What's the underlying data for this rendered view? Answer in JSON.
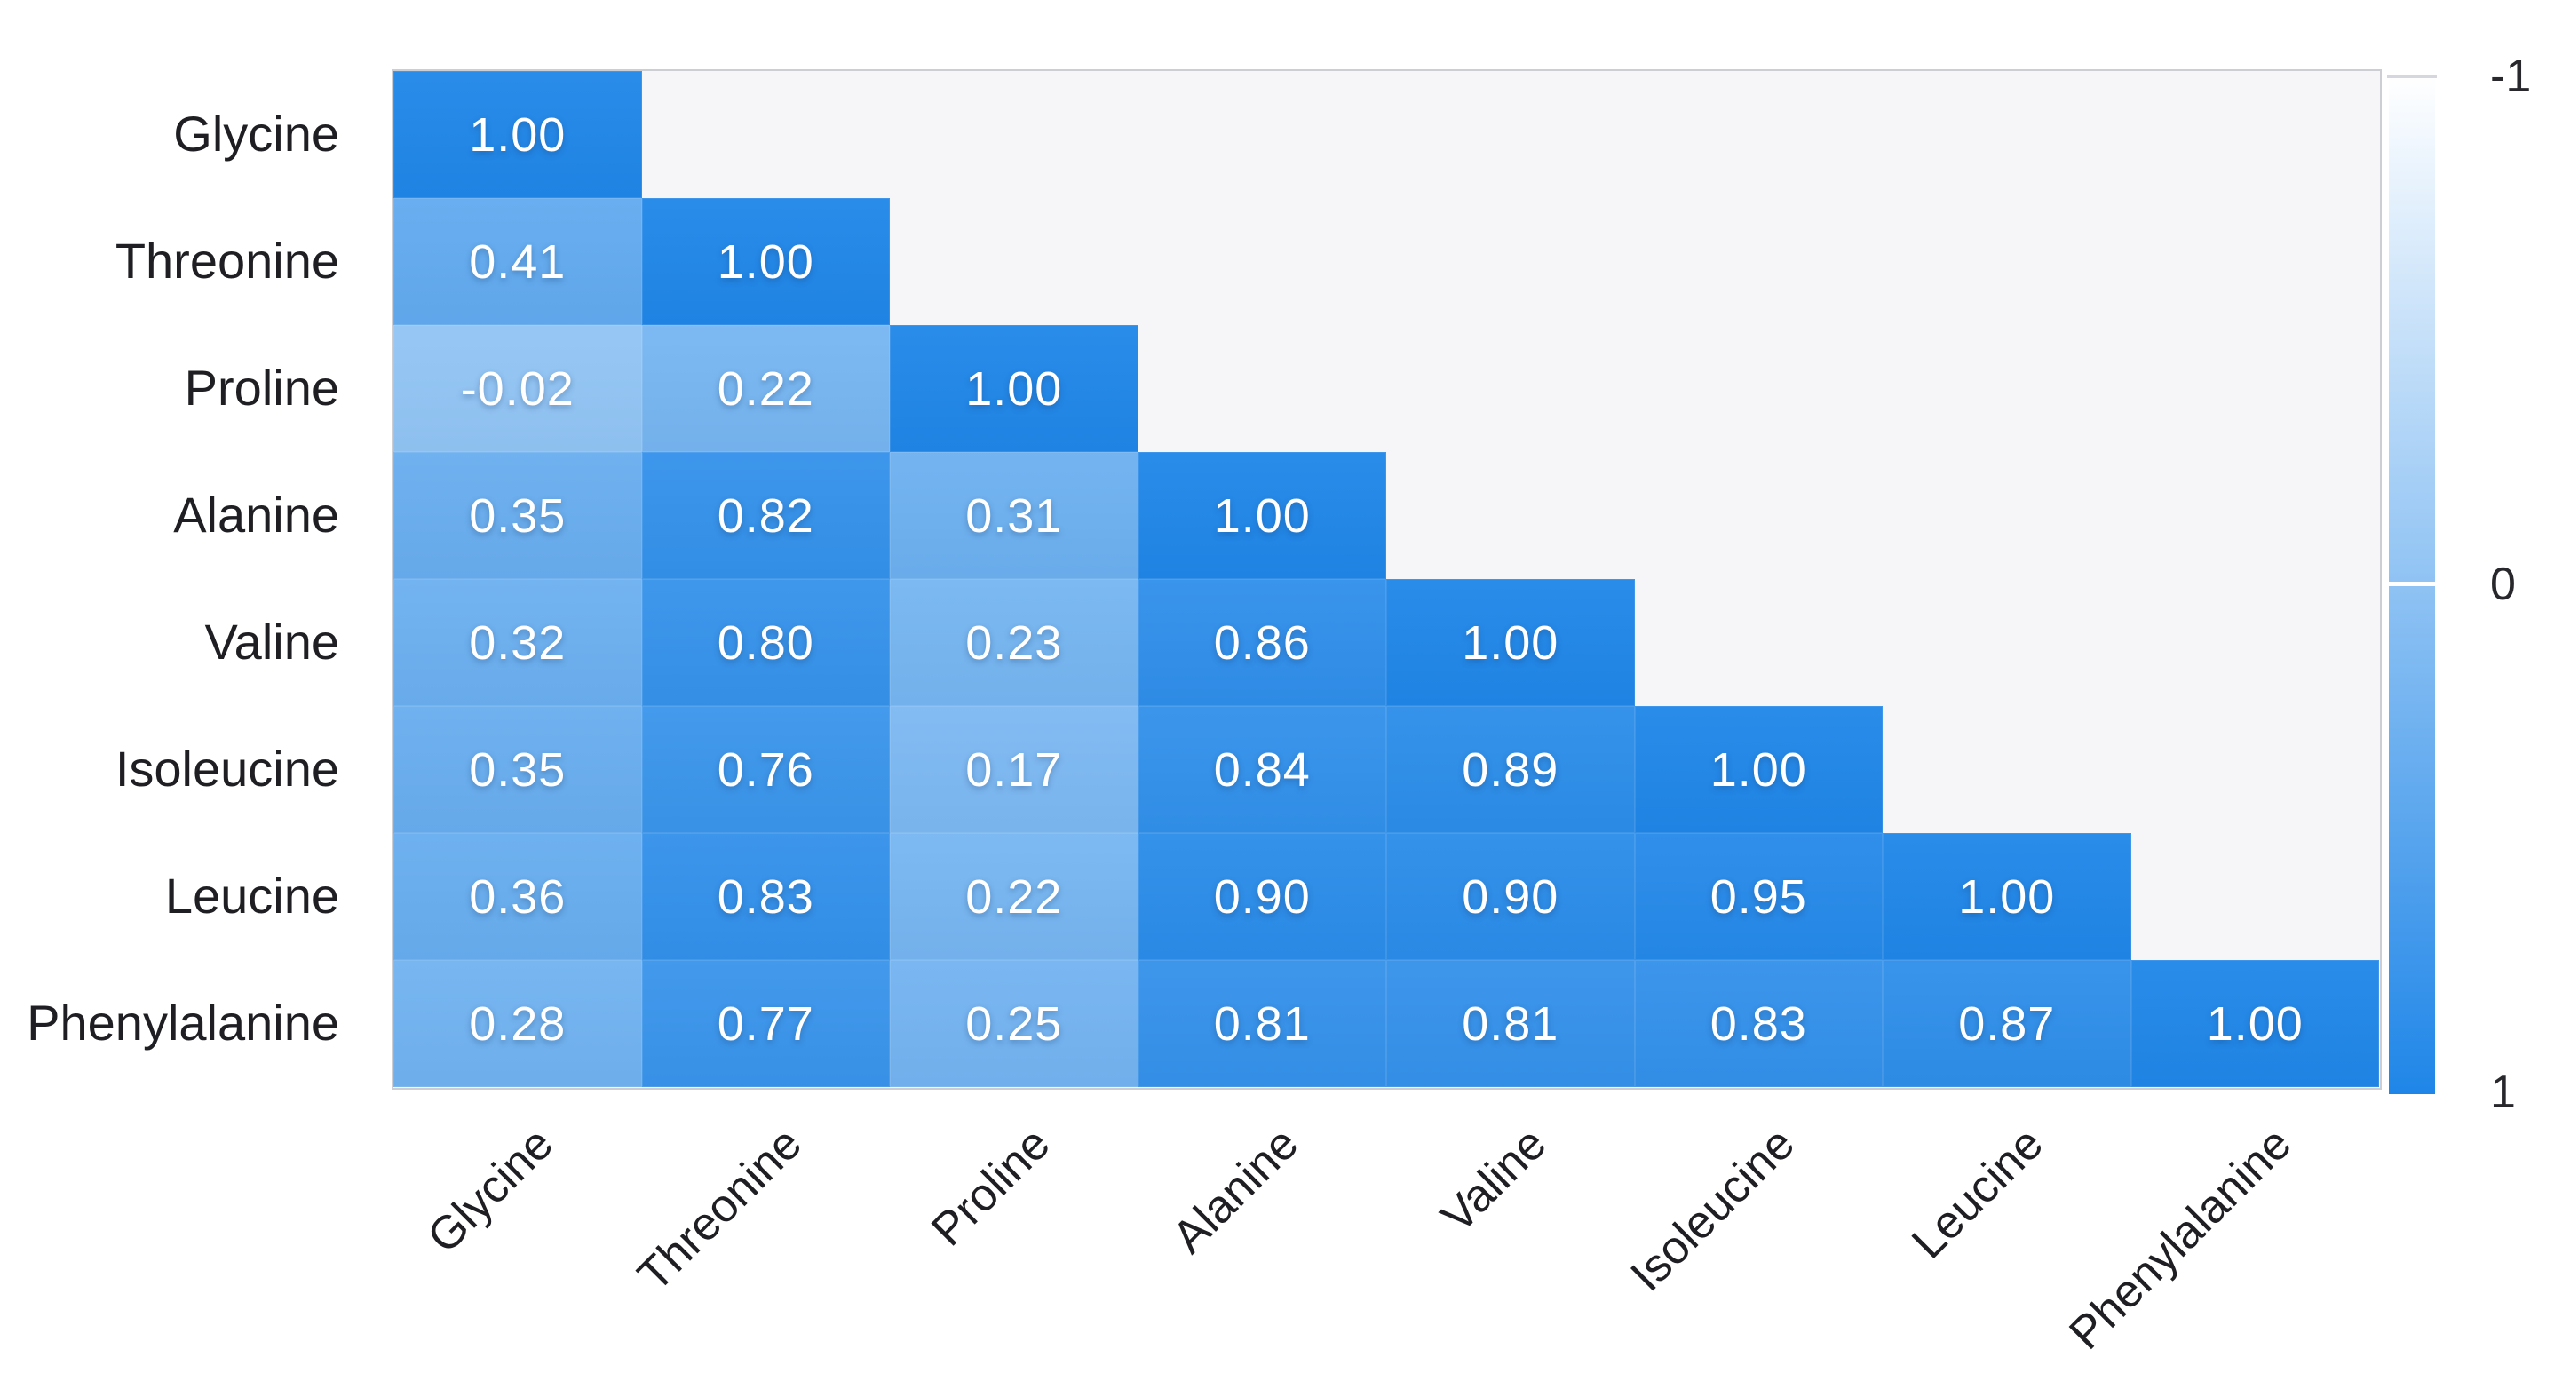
{
  "chart_data": {
    "type": "heatmap",
    "variant": "lower-triangular correlation matrix",
    "title": "",
    "categories": [
      "Glycine",
      "Threonine",
      "Proline",
      "Alanine",
      "Valine",
      "Isoleucine",
      "Leucine",
      "Phenylalanine"
    ],
    "x_categories": [
      "Glycine",
      "Threonine",
      "Proline",
      "Alanine",
      "Valine",
      "Isoleucine",
      "Leucine",
      "Phenylalanine"
    ],
    "matrix": [
      [
        1.0
      ],
      [
        0.41,
        1.0
      ],
      [
        -0.02,
        0.22,
        1.0
      ],
      [
        0.35,
        0.82,
        0.31,
        1.0
      ],
      [
        0.32,
        0.8,
        0.23,
        0.86,
        1.0
      ],
      [
        0.35,
        0.76,
        0.17,
        0.84,
        0.89,
        1.0
      ],
      [
        0.36,
        0.83,
        0.22,
        0.9,
        0.9,
        0.95,
        1.0
      ],
      [
        0.28,
        0.77,
        0.25,
        0.81,
        0.81,
        0.83,
        0.87,
        1.0
      ]
    ],
    "value_decimals": 2,
    "grid": false,
    "colorbar": {
      "orientation": "vertical",
      "position": "right",
      "min": -1,
      "max": 1,
      "min_label": "-1",
      "mid_label": "0",
      "max_label": "1"
    },
    "colors": {
      "max_color": "#1f86e8",
      "min_color": "#ffffff",
      "plot_background": "#f6f6f8",
      "plot_border": "#cdcdd4",
      "axis_label_color": "#1f1f23",
      "cell_text_color": "#ffffff"
    }
  }
}
